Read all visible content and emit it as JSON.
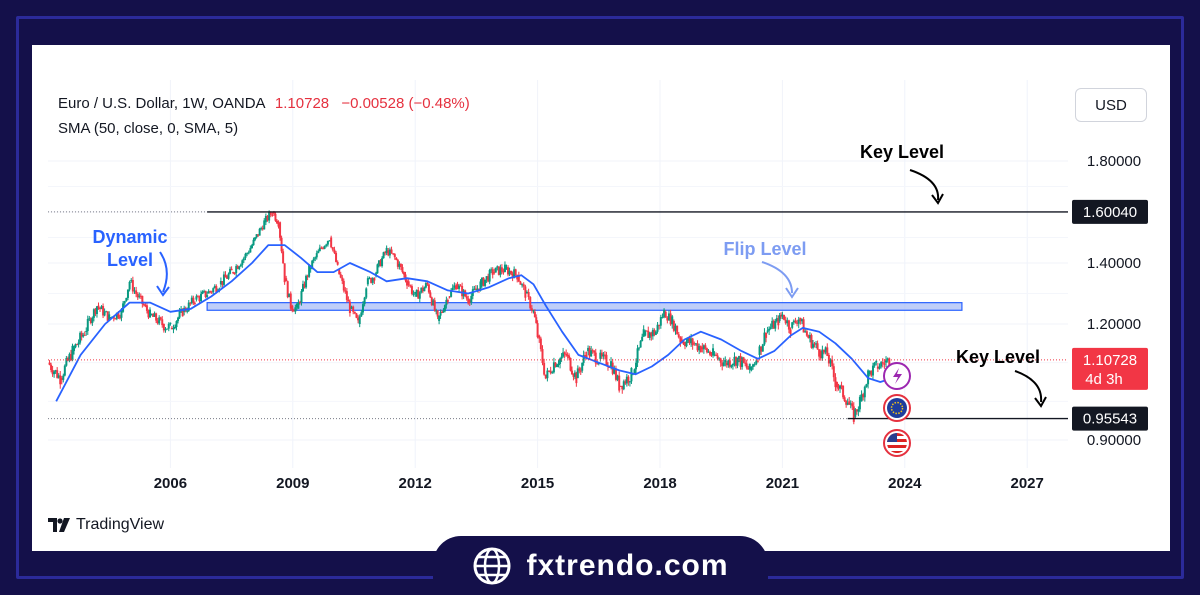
{
  "header": {
    "symbol": "Euro / U.S. Dollar, 1W, OANDA",
    "last_price": "1.10728",
    "change": "−0.00528 (−0.48%)",
    "indicator": "SMA (50, close, 0, SMA, 5)",
    "currency": "USD"
  },
  "footer": {
    "tradingview_logo": "TradingView",
    "site": "fxtrendo.com"
  },
  "chart_data": {
    "type": "line",
    "x_axis": {
      "type": "time",
      "range": [
        2003.0,
        2028.0
      ],
      "ticks": [
        "2006",
        "2009",
        "2012",
        "2015",
        "2018",
        "2021",
        "2024",
        "2027"
      ],
      "tick_values": [
        2006,
        2009,
        2012,
        2015,
        2018,
        2021,
        2024,
        2027
      ]
    },
    "y_axis": {
      "range": [
        0.8,
        1.9
      ],
      "ticks": [
        "1.80000",
        "1.40000",
        "1.20000",
        "0.90000"
      ],
      "tick_values": [
        1.8,
        1.4,
        1.2,
        0.9
      ]
    },
    "price_labels": [
      {
        "label": "1.60040",
        "value": 1.6004,
        "kind": "key"
      },
      {
        "label": "1.10728",
        "sublabel": "4d 3h",
        "value": 1.10728,
        "kind": "current"
      },
      {
        "label": "0.95543",
        "value": 0.95543,
        "kind": "key"
      }
    ],
    "series": [
      {
        "name": "EUR/USD",
        "color": "#089981",
        "down_color": "#f23645",
        "points": [
          [
            2003.0,
            1.1
          ],
          [
            2003.3,
            1.06
          ],
          [
            2003.6,
            1.13
          ],
          [
            2003.9,
            1.18
          ],
          [
            2004.2,
            1.26
          ],
          [
            2004.5,
            1.22
          ],
          [
            2004.8,
            1.24
          ],
          [
            2005.0,
            1.34
          ],
          [
            2005.2,
            1.29
          ],
          [
            2005.5,
            1.23
          ],
          [
            2005.8,
            1.2
          ],
          [
            2006.0,
            1.19
          ],
          [
            2006.3,
            1.24
          ],
          [
            2006.6,
            1.28
          ],
          [
            2006.9,
            1.3
          ],
          [
            2007.2,
            1.33
          ],
          [
            2007.5,
            1.37
          ],
          [
            2007.8,
            1.42
          ],
          [
            2008.0,
            1.47
          ],
          [
            2008.3,
            1.56
          ],
          [
            2008.5,
            1.6
          ],
          [
            2008.65,
            1.56
          ],
          [
            2008.8,
            1.35
          ],
          [
            2008.95,
            1.26
          ],
          [
            2009.1,
            1.25
          ],
          [
            2009.4,
            1.38
          ],
          [
            2009.7,
            1.46
          ],
          [
            2009.9,
            1.5
          ],
          [
            2010.1,
            1.38
          ],
          [
            2010.4,
            1.25
          ],
          [
            2010.6,
            1.2
          ],
          [
            2010.8,
            1.33
          ],
          [
            2011.0,
            1.36
          ],
          [
            2011.3,
            1.45
          ],
          [
            2011.5,
            1.42
          ],
          [
            2011.8,
            1.34
          ],
          [
            2012.0,
            1.29
          ],
          [
            2012.3,
            1.33
          ],
          [
            2012.55,
            1.21
          ],
          [
            2012.8,
            1.29
          ],
          [
            2013.0,
            1.33
          ],
          [
            2013.3,
            1.28
          ],
          [
            2013.6,
            1.33
          ],
          [
            2013.9,
            1.37
          ],
          [
            2014.2,
            1.38
          ],
          [
            2014.5,
            1.36
          ],
          [
            2014.7,
            1.3
          ],
          [
            2014.9,
            1.24
          ],
          [
            2015.0,
            1.17
          ],
          [
            2015.2,
            1.06
          ],
          [
            2015.4,
            1.1
          ],
          [
            2015.7,
            1.12
          ],
          [
            2015.95,
            1.06
          ],
          [
            2016.2,
            1.13
          ],
          [
            2016.5,
            1.11
          ],
          [
            2016.8,
            1.1
          ],
          [
            2017.0,
            1.04
          ],
          [
            2017.3,
            1.07
          ],
          [
            2017.6,
            1.17
          ],
          [
            2017.9,
            1.18
          ],
          [
            2018.1,
            1.24
          ],
          [
            2018.3,
            1.21
          ],
          [
            2018.5,
            1.16
          ],
          [
            2018.8,
            1.15
          ],
          [
            2019.0,
            1.14
          ],
          [
            2019.3,
            1.12
          ],
          [
            2019.6,
            1.1
          ],
          [
            2019.9,
            1.11
          ],
          [
            2020.2,
            1.08
          ],
          [
            2020.4,
            1.12
          ],
          [
            2020.6,
            1.18
          ],
          [
            2020.9,
            1.21
          ],
          [
            2021.0,
            1.23
          ],
          [
            2021.2,
            1.19
          ],
          [
            2021.4,
            1.22
          ],
          [
            2021.6,
            1.17
          ],
          [
            2021.9,
            1.13
          ],
          [
            2022.1,
            1.12
          ],
          [
            2022.3,
            1.05
          ],
          [
            2022.6,
            1.0
          ],
          [
            2022.75,
            0.96
          ],
          [
            2022.9,
            1.0
          ],
          [
            2023.1,
            1.07
          ],
          [
            2023.3,
            1.09
          ],
          [
            2023.5,
            1.1
          ],
          [
            2023.7,
            1.11
          ]
        ]
      },
      {
        "name": "SMA (50, close, 0, SMA, 5)",
        "color": "#2962ff",
        "points": [
          [
            2003.2,
            1.0
          ],
          [
            2003.8,
            1.12
          ],
          [
            2004.4,
            1.2
          ],
          [
            2005.0,
            1.27
          ],
          [
            2005.5,
            1.27
          ],
          [
            2006.0,
            1.24
          ],
          [
            2006.5,
            1.25
          ],
          [
            2007.0,
            1.29
          ],
          [
            2007.5,
            1.34
          ],
          [
            2008.0,
            1.4
          ],
          [
            2008.4,
            1.47
          ],
          [
            2008.8,
            1.47
          ],
          [
            2009.2,
            1.42
          ],
          [
            2009.6,
            1.37
          ],
          [
            2010.0,
            1.37
          ],
          [
            2010.4,
            1.4
          ],
          [
            2010.9,
            1.37
          ],
          [
            2011.3,
            1.34
          ],
          [
            2011.8,
            1.35
          ],
          [
            2012.3,
            1.34
          ],
          [
            2012.8,
            1.31
          ],
          [
            2013.3,
            1.3
          ],
          [
            2013.8,
            1.32
          ],
          [
            2014.3,
            1.35
          ],
          [
            2014.6,
            1.36
          ],
          [
            2014.9,
            1.33
          ],
          [
            2015.2,
            1.26
          ],
          [
            2015.6,
            1.18
          ],
          [
            2016.0,
            1.12
          ],
          [
            2016.5,
            1.1
          ],
          [
            2017.0,
            1.08
          ],
          [
            2017.4,
            1.07
          ],
          [
            2017.8,
            1.09
          ],
          [
            2018.2,
            1.12
          ],
          [
            2018.6,
            1.16
          ],
          [
            2019.0,
            1.18
          ],
          [
            2019.5,
            1.16
          ],
          [
            2020.0,
            1.13
          ],
          [
            2020.4,
            1.11
          ],
          [
            2020.8,
            1.13
          ],
          [
            2021.2,
            1.17
          ],
          [
            2021.5,
            1.19
          ],
          [
            2021.9,
            1.18
          ],
          [
            2022.3,
            1.15
          ],
          [
            2022.7,
            1.11
          ],
          [
            2023.1,
            1.06
          ],
          [
            2023.4,
            1.05
          ],
          [
            2023.7,
            1.06
          ]
        ]
      }
    ],
    "zones": [
      {
        "name": "flip-zone",
        "x": [
          2006.9,
          2025.4
        ],
        "y": [
          1.245,
          1.27
        ],
        "color": "#aabef7"
      }
    ],
    "annotations": [
      {
        "text": "Key Level",
        "target_value": 1.6004
      },
      {
        "text": "Dynamic Level",
        "line1": "Dynamic",
        "line2": "Level"
      },
      {
        "text": "Flip Level"
      },
      {
        "text": "Key Level",
        "target_value": 0.95543
      }
    ],
    "grid": true,
    "legend": "top-left"
  }
}
